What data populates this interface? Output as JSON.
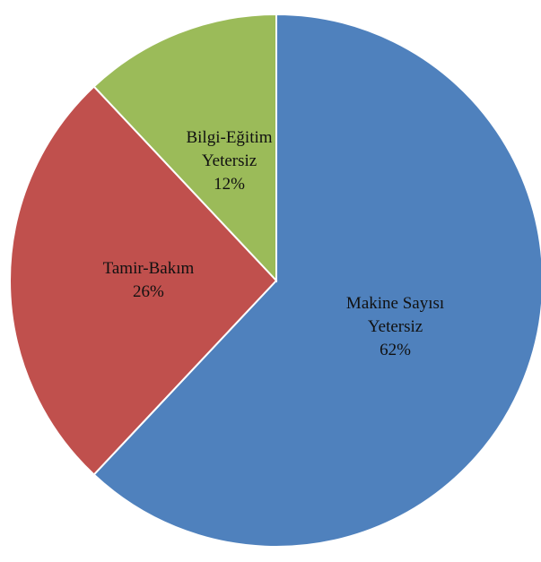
{
  "chart_data": {
    "type": "pie",
    "categories": [
      "Makine Sayısı Yetersiz",
      "Tamir-Bakım",
      "Bilgi-Eğitim Yetersiz"
    ],
    "values": [
      62,
      26,
      12
    ],
    "value_labels": [
      "62%",
      "26%",
      "12%"
    ],
    "colors": [
      "#4f81bd",
      "#c0504d",
      "#9bbb59"
    ]
  }
}
